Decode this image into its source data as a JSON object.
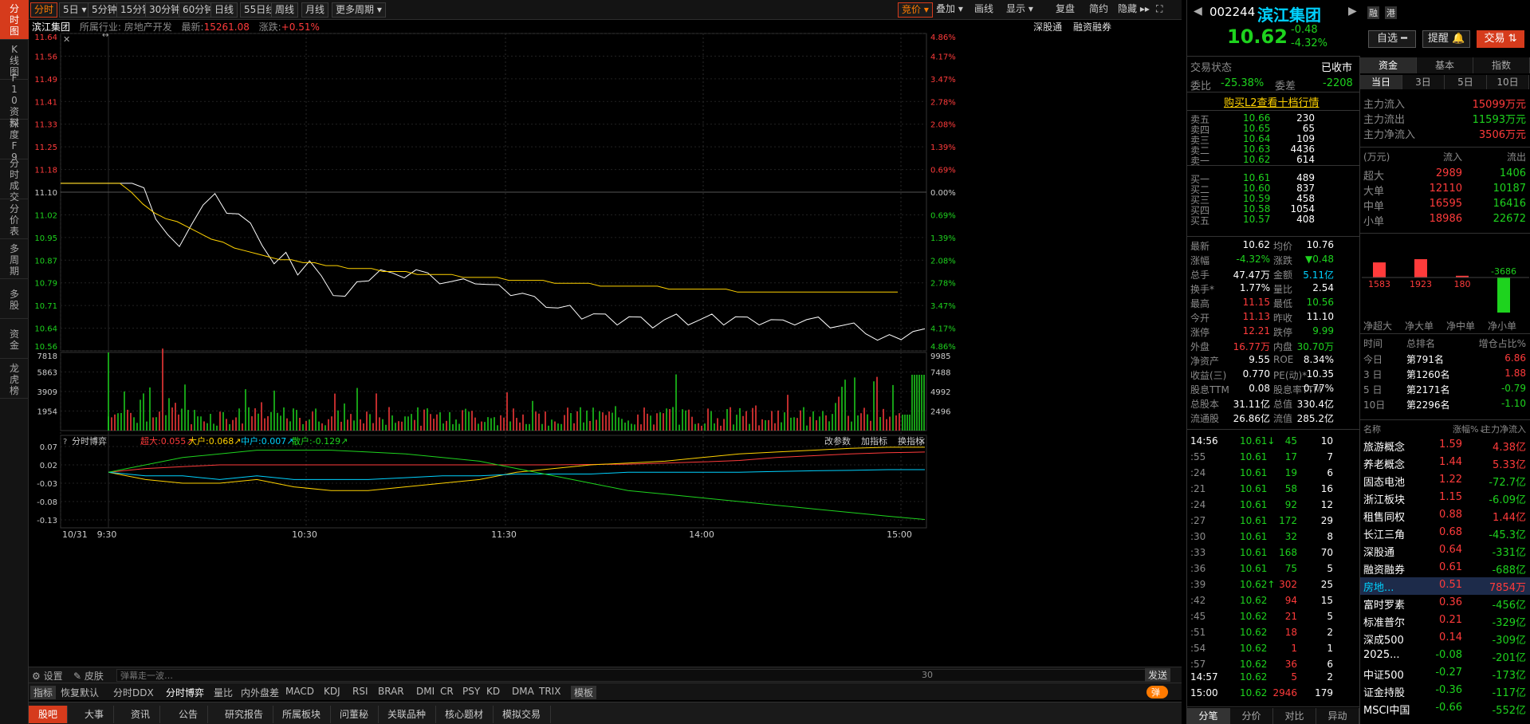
{
  "leftbar": [
    "分时图",
    "K线图",
    "F10资料",
    "深度F9",
    "分时成交",
    "分价表",
    "多周期",
    "多股",
    "资金",
    "龙虎榜"
  ],
  "topbar": {
    "periods": [
      "分时",
      "5日 ▾",
      "5分钟",
      "15分钟",
      "30分钟",
      "60分钟",
      "日线",
      "55日线",
      "周线",
      "月线",
      "更多周期 ▾"
    ],
    "right": [
      "竞价 ▾",
      "叠加 ▾",
      "画线",
      "显示 ▾",
      "复盘",
      "简约",
      "隐藏 ▸▸",
      "⛶"
    ]
  },
  "chart": {
    "stock_name": "滨江集团",
    "industry": "所属行业: 房地产开发",
    "latest": "最新:",
    "latest_val": "15261.08",
    "change": "涨跌:",
    "change_val": "+0.51%",
    "links": [
      "深股通",
      "融资融券"
    ],
    "price_ticks": [
      "11.64",
      "11.56",
      "11.49",
      "11.41",
      "11.33",
      "11.25",
      "11.18",
      "11.10",
      "11.02",
      "10.95",
      "10.87",
      "10.79",
      "10.71",
      "10.64",
      "10.56"
    ],
    "pct_ticks": [
      "4.86%",
      "4.17%",
      "3.47%",
      "2.78%",
      "2.08%",
      "1.39%",
      "0.69%",
      "0.00%",
      "0.69%",
      "1.39%",
      "2.08%",
      "2.78%",
      "3.47%",
      "4.17%",
      "4.86%"
    ],
    "vol_ticks": [
      "7818",
      "5863",
      "3909",
      "1954"
    ],
    "vol_right_ticks": [
      "9985",
      "7488",
      "4992",
      "2496"
    ],
    "game_ticks": [
      "0.07",
      "0.02",
      "-0.03",
      "-0.08",
      "-0.13"
    ],
    "game_title": "分时博弈",
    "game_legend": [
      {
        "label": "超大:0.055↗",
        "color": "#ff3b3b"
      },
      {
        "label": "大户:0.068↗",
        "color": "#ffd200"
      },
      {
        "label": "中户:0.007↗",
        "color": "#00d2ff"
      },
      {
        "label": "散户:-0.129↗",
        "color": "#1ed31e"
      }
    ],
    "game_links": [
      "改参数",
      "加指标",
      "换指标"
    ],
    "time_labels": [
      "10/31",
      "9:30",
      "10:30",
      "11:30",
      "14:00",
      "15:00"
    ]
  },
  "chart_data": {
    "type": "line",
    "prev_close": 11.1,
    "ylim": [
      10.56,
      11.64
    ],
    "price_series": [
      11.13,
      11.13,
      11.13,
      11.1,
      11.02,
      10.95,
      10.9,
      11.0,
      11.05,
      11.08,
      11.04,
      11.02,
      10.98,
      10.93,
      10.85,
      10.88,
      10.83,
      10.86,
      10.8,
      10.76,
      10.74,
      10.78,
      10.81,
      10.83,
      10.81,
      10.82,
      10.83,
      10.81,
      10.8,
      10.79,
      10.79,
      10.8,
      10.78,
      10.77,
      10.76,
      10.75,
      10.73,
      10.72,
      10.7,
      10.7,
      10.68,
      10.68,
      10.67,
      10.66,
      10.67,
      10.66,
      10.65,
      10.66,
      10.67,
      10.66,
      10.66,
      10.67,
      10.66,
      10.67,
      10.66,
      10.66,
      10.66,
      10.65,
      10.66,
      10.66,
      10.66,
      10.65,
      10.64,
      10.64,
      10.63,
      10.59,
      10.6,
      10.61,
      10.62,
      10.62
    ],
    "avg_series": [
      11.13,
      11.13,
      11.1,
      11.06,
      11.03,
      11.01,
      11.0,
      10.98,
      10.96,
      10.94,
      10.93,
      10.91,
      10.9,
      10.89,
      10.88,
      10.87,
      10.87,
      10.86,
      10.86,
      10.85,
      10.85,
      10.84,
      10.84,
      10.84,
      10.83,
      10.83,
      10.83,
      10.82,
      10.82,
      10.82,
      10.82,
      10.81,
      10.81,
      10.81,
      10.81,
      10.8,
      10.8,
      10.8,
      10.8,
      10.79,
      10.79,
      10.79,
      10.79,
      10.78,
      10.78,
      10.78,
      10.78,
      10.78,
      10.78,
      10.77,
      10.77,
      10.77,
      10.77,
      10.77,
      10.77,
      10.76,
      10.76,
      10.76,
      10.76,
      10.76,
      10.76,
      10.76,
      10.76,
      10.76,
      10.76,
      10.76,
      10.76,
      10.76,
      10.76,
      10.76
    ],
    "game_series": [
      {
        "name": "超大",
        "color": "#ff3b3b",
        "values": [
          0.0,
          0.01,
          0.015,
          0.02,
          0.02,
          0.02,
          0.02,
          0.02,
          0.02,
          0.02,
          0.02,
          0.02,
          0.02,
          0.021,
          0.022,
          0.025,
          0.028,
          0.032,
          0.04,
          0.045,
          0.05,
          0.053,
          0.055
        ]
      },
      {
        "name": "大户",
        "color": "#ffd200",
        "values": [
          0.0,
          -0.02,
          -0.03,
          -0.03,
          -0.02,
          -0.04,
          -0.05,
          -0.05,
          -0.04,
          -0.03,
          -0.02,
          0.0,
          0.01,
          0.02,
          0.025,
          0.03,
          0.04,
          0.05,
          0.055,
          0.06,
          0.065,
          0.068,
          0.068
        ]
      },
      {
        "name": "中户",
        "color": "#00d2ff",
        "values": [
          0.0,
          -0.01,
          -0.01,
          -0.02,
          -0.01,
          -0.02,
          -0.02,
          -0.02,
          -0.015,
          -0.01,
          -0.01,
          -0.005,
          -0.005,
          -0.005,
          0.0,
          0.0,
          0.0,
          0.0,
          0.002,
          0.004,
          0.005,
          0.007,
          0.007
        ]
      },
      {
        "name": "散户",
        "color": "#1ed31e",
        "values": [
          0.0,
          0.02,
          0.04,
          0.05,
          0.06,
          0.06,
          0.06,
          0.055,
          0.05,
          0.04,
          0.03,
          0.01,
          -0.01,
          -0.03,
          -0.05,
          -0.06,
          -0.07,
          -0.08,
          -0.09,
          -0.1,
          -0.11,
          -0.12,
          -0.129
        ]
      }
    ]
  },
  "botbar": {
    "settings": "设置",
    "skin": "皮肤",
    "danmu_placeholder": "弹幕走一波…",
    "count": "30",
    "send": "发送"
  },
  "indicators": [
    "指标",
    "恢复默认",
    "分时DDX",
    "分时博弈",
    "量比",
    "内外盘差",
    "MACD",
    "KDJ",
    "RSI",
    "BRAR",
    "DMI",
    "CR",
    "PSY",
    "KD",
    "DMA",
    "TRIX",
    "模板"
  ],
  "indicator_toggle": "弹",
  "tabs": [
    "股吧",
    "大事",
    "资讯",
    "公告",
    "研究报告",
    "所属板块",
    "问董秘",
    "关联品种",
    "核心题材",
    "模拟交易"
  ],
  "quote": {
    "code": "002244",
    "name": "滨江集团",
    "price": "10.62",
    "chg": "-0.48",
    "pct": "-4.32%",
    "rz": "融",
    "gang": "港",
    "btn_select": "自选 ━",
    "btn_remind": "提醒 🔔",
    "btn_trade": "交易 ⇅",
    "status_label": "交易状态",
    "status_val": "已收市",
    "weibi_label": "委比",
    "weibi_val": "-25.38%",
    "weicha_label": "委差",
    "weicha_val": "-2208",
    "l2_link": "购买L2查看十档行情",
    "sells": [
      [
        "卖五",
        "10.66",
        "230"
      ],
      [
        "卖四",
        "10.65",
        "65"
      ],
      [
        "卖三",
        "10.64",
        "109"
      ],
      [
        "卖二",
        "10.63",
        "4436"
      ],
      [
        "卖一",
        "10.62",
        "614"
      ]
    ],
    "buys": [
      [
        "买一",
        "10.61",
        "489"
      ],
      [
        "买二",
        "10.60",
        "837"
      ],
      [
        "买三",
        "10.59",
        "458"
      ],
      [
        "买四",
        "10.58",
        "1054"
      ],
      [
        "买五",
        "10.57",
        "408"
      ]
    ],
    "stats": [
      [
        "最新",
        "10.62",
        "均价",
        "10.76"
      ],
      [
        "涨幅",
        "-4.32%",
        "涨跌",
        "▼0.48"
      ],
      [
        "总手",
        "47.47万",
        "金额",
        "5.11亿"
      ],
      [
        "换手*",
        "1.77%",
        "量比",
        "2.54"
      ],
      [
        "最高",
        "11.15",
        "最低",
        "10.56"
      ],
      [
        "今开",
        "11.13",
        "昨收",
        "11.10"
      ],
      [
        "涨停",
        "12.21",
        "跌停",
        "9.99"
      ],
      [
        "外盘",
        "16.77万",
        "内盘",
        "30.70万"
      ],
      [
        "净资产",
        "9.55",
        "ROE",
        "8.34%"
      ],
      [
        "收益(三)",
        "0.770",
        "PE(动)*",
        "10.35"
      ],
      [
        "股息TTM",
        "0.08",
        "股息率TTM",
        "0.77%"
      ],
      [
        "总股本",
        "31.11亿",
        "总值",
        "330.4亿"
      ],
      [
        "流通股",
        "26.86亿",
        "流值",
        "285.2亿"
      ]
    ],
    "ticks": [
      [
        "14:56",
        "10.61↓",
        "45",
        "10"
      ],
      [
        ":55",
        "10.61",
        "17",
        "7"
      ],
      [
        ":24",
        "10.61",
        "19",
        "6"
      ],
      [
        ":21",
        "10.61",
        "58",
        "16"
      ],
      [
        ":24",
        "10.61",
        "92",
        "12"
      ],
      [
        ":27",
        "10.61",
        "172",
        "29"
      ],
      [
        ":30",
        "10.61",
        "32",
        "8"
      ],
      [
        ":33",
        "10.61",
        "168",
        "70"
      ],
      [
        ":36",
        "10.61",
        "75",
        "5"
      ],
      [
        ":39",
        "10.62↑",
        "302",
        "25"
      ],
      [
        ":42",
        "10.62",
        "94",
        "15"
      ],
      [
        ":45",
        "10.62",
        "21",
        "5"
      ],
      [
        ":51",
        "10.62",
        "18",
        "2"
      ],
      [
        ":54",
        "10.62",
        "1",
        "1"
      ],
      [
        ":57",
        "10.62",
        "36",
        "6"
      ],
      [
        "14:57",
        "10.62",
        "5",
        "2"
      ],
      [
        "15:00",
        "10.62",
        "2946",
        "179"
      ]
    ],
    "bottom_tabs": [
      "分笔",
      "分价",
      "对比",
      "异动"
    ]
  },
  "fund": {
    "tabs": [
      "资金",
      "基本",
      "指数"
    ],
    "subtabs": [
      "当日",
      "3日",
      "5日",
      "10日"
    ],
    "flows": [
      [
        "主力流入",
        "15099万元"
      ],
      [
        "主力流出",
        "11593万元"
      ],
      [
        "主力净流入",
        "3506万元"
      ]
    ],
    "table_head": [
      "(万元)",
      "流入",
      "流出"
    ],
    "table": [
      [
        "超大",
        "2989",
        "1406"
      ],
      [
        "大单",
        "12110",
        "10187"
      ],
      [
        "中单",
        "16595",
        "16416"
      ],
      [
        "小单",
        "18986",
        "22672"
      ]
    ],
    "bar_labels": [
      "净超大",
      "净大单",
      "净中单",
      "净小单"
    ],
    "bar_values": [
      1583,
      1923,
      180,
      -3686
    ],
    "rank_head": [
      "时间",
      "总排名",
      "增仓占比%"
    ],
    "ranks": [
      [
        "今日",
        "第791名",
        "6.86"
      ],
      [
        "3 日",
        "第1260名",
        "1.88"
      ],
      [
        "5 日",
        "第2171名",
        "-0.79"
      ],
      [
        "10日",
        "第2296名",
        "-1.10"
      ]
    ],
    "sector_head": [
      "名称",
      "涨幅%↓",
      "主力净流入"
    ],
    "sectors": [
      [
        "旅游概念",
        "1.59",
        "4.38亿"
      ],
      [
        "养老概念",
        "1.44",
        "5.33亿"
      ],
      [
        "固态电池",
        "1.22",
        "-72.7亿"
      ],
      [
        "浙江板块",
        "1.15",
        "-6.09亿"
      ],
      [
        "租售同权",
        "0.88",
        "1.44亿"
      ],
      [
        "长江三角",
        "0.68",
        "-45.3亿"
      ],
      [
        "深股通",
        "0.64",
        "-331亿"
      ],
      [
        "融资融券",
        "0.61",
        "-688亿"
      ],
      [
        "房地...",
        "0.51",
        "7854万"
      ],
      [
        "富时罗素",
        "0.36",
        "-456亿"
      ],
      [
        "标准普尔",
        "0.21",
        "-329亿"
      ],
      [
        "深成500",
        "0.14",
        "-309亿"
      ],
      [
        "2025...",
        "-0.08",
        "-201亿"
      ],
      [
        "中证500",
        "-0.27",
        "-173亿"
      ],
      [
        "证金持股",
        "-0.36",
        "-117亿"
      ],
      [
        "MSCI中国",
        "-0.66",
        "-552亿"
      ]
    ]
  }
}
